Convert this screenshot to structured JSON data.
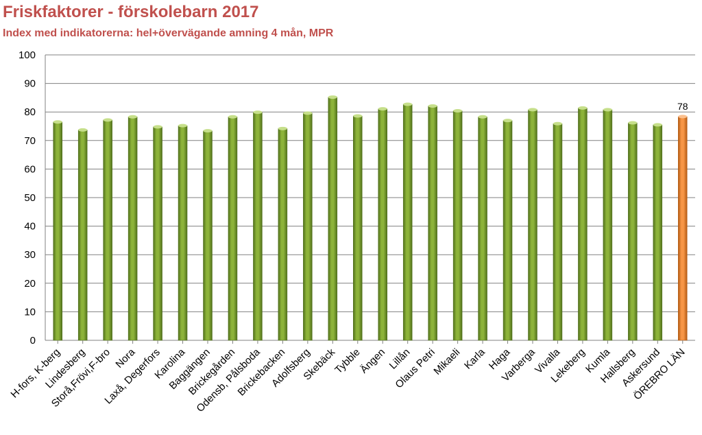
{
  "colors": {
    "title": "#c0504d",
    "bar": "#8db33a",
    "bar_dark": "#4f6f1a",
    "highlight_bar": "#f79646",
    "highlight_bar_dark": "#b35a12",
    "grid": "#808080"
  },
  "chart_data": {
    "type": "bar",
    "title": "Friskfaktorer - förskolebarn 2017",
    "subtitle": "Index med indikatorerna: hel+övervägande amning 4 mån, MPR",
    "xlabel": "",
    "ylabel": "",
    "ylim": [
      0,
      100
    ],
    "yticks": [
      "0",
      "10",
      "20",
      "30",
      "40",
      "50",
      "60",
      "70",
      "80",
      "90",
      "100"
    ],
    "grid": true,
    "legend": "none",
    "categories": [
      "H-fors, K-berg",
      "Lindesberg",
      "Storå,Frövi,F-bro",
      "Nora",
      "Laxå, Degerfors",
      "Karolina",
      "Baggängen",
      "Brickegården",
      "Odensb, Pålsboda",
      "Brickebacken",
      "Adolfsberg",
      "Skebäck",
      "Tybble",
      "Ängen",
      "Lillån",
      "Olaus Petri",
      "Mikaeli",
      "Karla",
      "Haga",
      "Varberga",
      "Vivalla",
      "Lekeberg",
      "Kumla",
      "Hallsberg",
      "Askersund",
      "ÖREBRO LÄN"
    ],
    "values": [
      76.5,
      73.7,
      77.2,
      78.3,
      74.8,
      75.2,
      73.4,
      78.3,
      79.9,
      74.2,
      79.6,
      85.2,
      78.6,
      81.1,
      82.7,
      82.1,
      80.4,
      78.3,
      77.0,
      80.8,
      75.9,
      81.4,
      80.8,
      76.2,
      75.5,
      78.4
    ],
    "highlight_index": 25,
    "data_labels": [
      {
        "index": 25,
        "text": "78"
      }
    ]
  }
}
